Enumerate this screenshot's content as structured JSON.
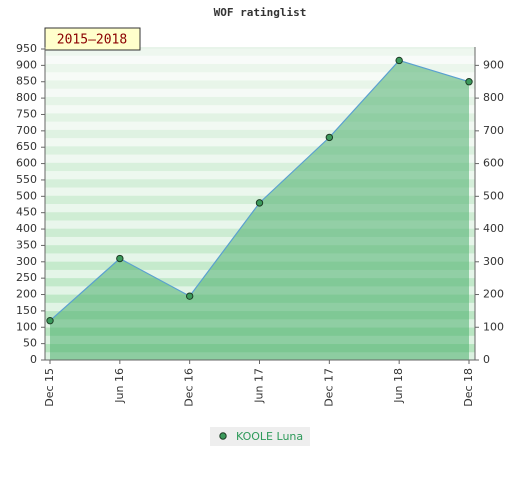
{
  "chart_data": {
    "type": "area",
    "title": "WOF ratinglist",
    "annotation": "2015–2018",
    "categories": [
      "Dec 15",
      "Jun 16",
      "Dec 16",
      "Jun 17",
      "Dec 17",
      "Jun 18",
      "Dec 18"
    ],
    "series": [
      {
        "name": "KOOLE Luna",
        "color": "#5aa0d0",
        "fill": "#4cae6e",
        "values": [
          120,
          310,
          195,
          480,
          680,
          915,
          850
        ]
      }
    ],
    "ylim": [
      0,
      950
    ],
    "yticks": [
      0,
      50,
      100,
      150,
      200,
      250,
      300,
      350,
      400,
      450,
      500,
      550,
      600,
      650,
      700,
      750,
      800,
      850,
      900,
      950
    ],
    "y2lim": [
      0,
      950
    ],
    "y2ticks": [
      0,
      100,
      200,
      300,
      400,
      500,
      600,
      700,
      800,
      900
    ]
  }
}
